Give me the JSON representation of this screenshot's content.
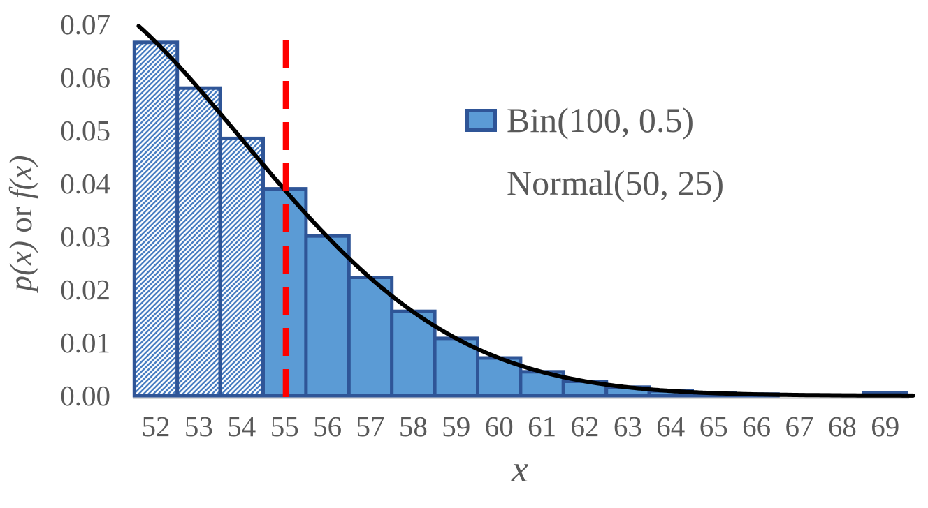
{
  "chart_data": {
    "type": "bar",
    "title": "",
    "categories": [
      52,
      53,
      54,
      55,
      56,
      57,
      58,
      59,
      60,
      61,
      62,
      63,
      64,
      65,
      66,
      67,
      68,
      69
    ],
    "x_tick_labels": [
      "52",
      "53",
      "54",
      "55",
      "56",
      "57",
      "58",
      "59",
      "60",
      "61",
      "62",
      "63",
      "64",
      "65",
      "66",
      "67",
      "68",
      "69"
    ],
    "y_tick_labels": [
      "0.00",
      "0.01",
      "0.02",
      "0.03",
      "0.04",
      "0.05",
      "0.06",
      "0.07"
    ],
    "ylim": [
      0,
      0.07
    ],
    "ytick_step": 0.01,
    "grid": false,
    "xlabel": "x",
    "ylabel": "p(x) or f(x)",
    "ylabel_parts": {
      "p": "p(x)",
      "or": " or ",
      "f": "f(x)"
    },
    "series": [
      {
        "name": "Bin(100, 0.5)",
        "type": "bar",
        "fill_color": "#5B9BD5",
        "border_color": "#2F5597",
        "values": [
          0.0666,
          0.058,
          0.0485,
          0.039,
          0.0301,
          0.0223,
          0.0159,
          0.0108,
          0.0071,
          0.0045,
          0.0027,
          0.0016,
          0.0009,
          0.0005,
          0.0003,
          0.0001,
          6e-05,
          0.0005
        ],
        "hatched_categories": [
          52,
          53,
          54
        ],
        "hatch_color": "#4A7EC2",
        "hatch_background": "#FFFFFF"
      },
      {
        "name": "Normal(50, 25)",
        "type": "line",
        "color": "#000000",
        "distribution": "normal_pdf",
        "mean": 50,
        "variance": 25,
        "plot_offset": 1,
        "x_plot_range": [
          51.6,
          69.65
        ]
      }
    ],
    "reference_line": {
      "x": 55,
      "orientation": "vertical",
      "style": "dashed",
      "color": "#FF0000"
    },
    "legend": {
      "position": "upper-right",
      "entries": [
        {
          "label": "Bin(100, 0.5)",
          "swatch": "bar"
        },
        {
          "label": "Normal(50, 25)",
          "swatch": "none"
        }
      ]
    },
    "axis_line_color": "#D9D9D9",
    "text_color": "#595959"
  }
}
